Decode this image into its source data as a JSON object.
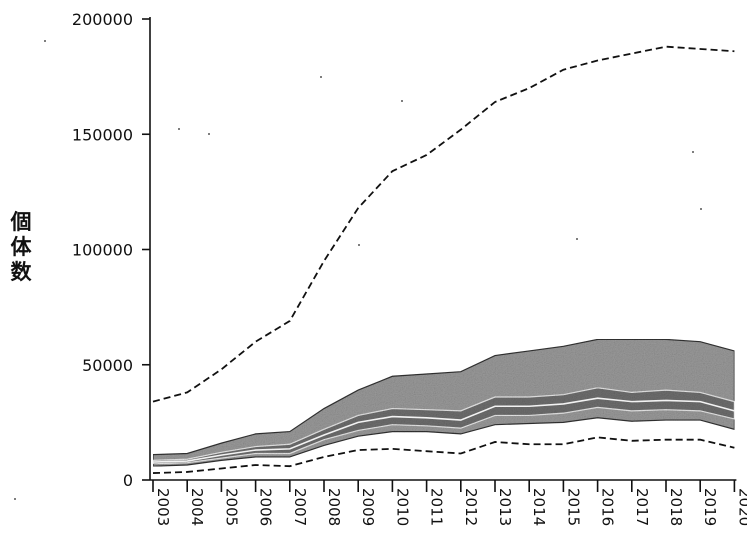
{
  "chart_data": {
    "type": "area",
    "title": "",
    "xlabel": "",
    "ylabel": "個体数",
    "ylim": [
      0,
      200000
    ],
    "yticks": [
      "0",
      "50000",
      "100000",
      "150000",
      "200000"
    ],
    "categories": [
      "2003",
      "2004",
      "2005",
      "2006",
      "2007",
      "2008",
      "2009",
      "2010",
      "2011",
      "2012",
      "2013",
      "2014",
      "2015",
      "2016",
      "2017",
      "2018",
      "2019",
      "2020"
    ],
    "series": [
      {
        "role": "upper_dashed",
        "values": [
          34000,
          38000,
          48000,
          60000,
          69000,
          95000,
          118000,
          134000,
          141000,
          152000,
          164000,
          170000,
          178000,
          182000,
          185000,
          188000,
          187000,
          186000
        ]
      },
      {
        "role": "lower_dashed",
        "values": [
          3000,
          3500,
          5000,
          6500,
          6000,
          10000,
          13000,
          13500,
          12500,
          11500,
          16500,
          15500,
          15500,
          18500,
          17000,
          17500,
          17500,
          14000
        ]
      },
      {
        "role": "outer_band_upper",
        "values": [
          11000,
          11500,
          16000,
          20000,
          21000,
          31000,
          39000,
          45000,
          46000,
          47000,
          54000,
          56000,
          58000,
          61000,
          61000,
          61000,
          60000,
          56000
        ]
      },
      {
        "role": "outer_band_lower",
        "values": [
          6000,
          6500,
          8500,
          10000,
          10000,
          15000,
          19000,
          21000,
          21000,
          20000,
          24000,
          24500,
          25000,
          27000,
          25500,
          26000,
          26000,
          22000
        ]
      },
      {
        "role": "inner_band_upper",
        "values": [
          8500,
          9000,
          12000,
          14500,
          15500,
          22000,
          28000,
          31000,
          30500,
          30000,
          36000,
          36000,
          37000,
          40000,
          38000,
          39000,
          38000,
          34000
        ]
      },
      {
        "role": "inner_band_lower",
        "values": [
          7000,
          7500,
          9500,
          11500,
          11500,
          17500,
          21500,
          24000,
          23500,
          22500,
          28000,
          28000,
          29000,
          31500,
          30000,
          30500,
          30000,
          26500
        ]
      },
      {
        "role": "median",
        "values": [
          7800,
          8200,
          10800,
          13000,
          13500,
          19500,
          25000,
          27500,
          27000,
          26000,
          32000,
          32000,
          33000,
          35500,
          34000,
          34500,
          34000,
          30000
        ]
      }
    ],
    "grid": false,
    "legend": "none",
    "colors": {
      "axis": "#111111",
      "dashed": "#111111",
      "outer_band": "#9a9a9a",
      "inner_band": "#6e6e6e",
      "median": "#f2f2f2"
    }
  }
}
